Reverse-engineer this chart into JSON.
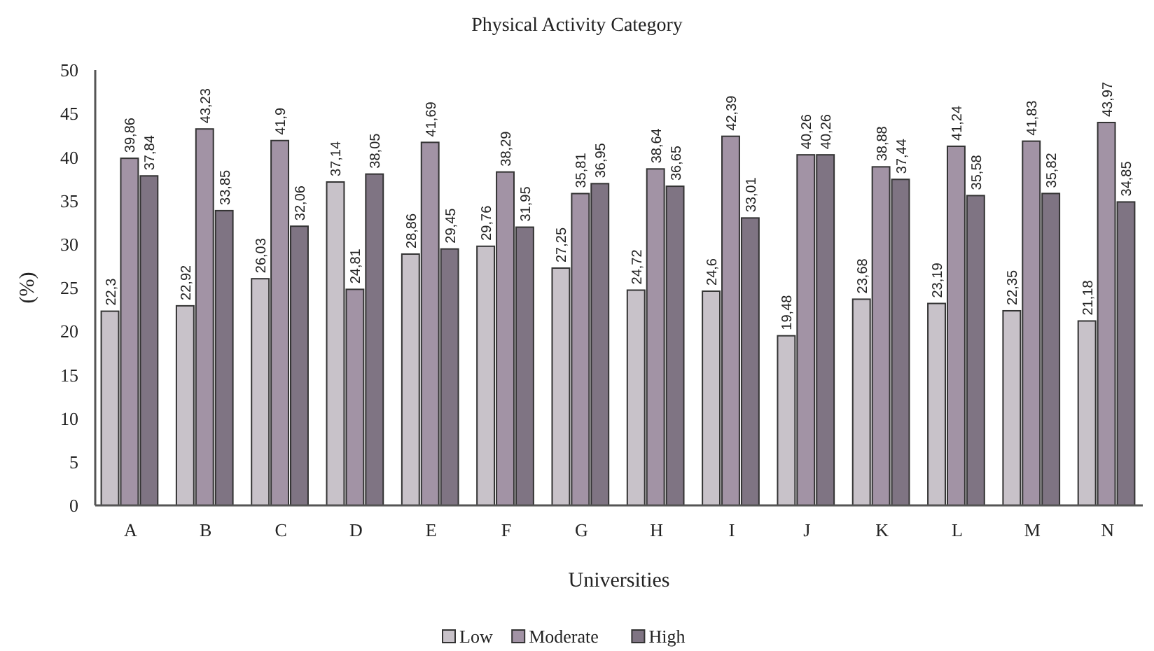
{
  "chart_data": {
    "type": "bar",
    "title": "Physical Activity Category",
    "xlabel": "Universities",
    "ylabel": "(%)",
    "categories": [
      "A",
      "B",
      "C",
      "D",
      "E",
      "F",
      "G",
      "H",
      "I",
      "J",
      "K",
      "L",
      "M",
      "N"
    ],
    "series": [
      {
        "name": "Low",
        "color": "#c8c2c9",
        "values": [
          22.3,
          22.92,
          26.03,
          37.14,
          28.86,
          29.76,
          27.25,
          24.72,
          24.6,
          19.48,
          23.68,
          23.19,
          22.35,
          21.18
        ],
        "value_labels": [
          "22,3",
          "22,92",
          "26,03",
          "37,14",
          "28,86",
          "29,76",
          "27,25",
          "24,72",
          "24,6",
          "19,48",
          "23,68",
          "23,19",
          "22,35",
          "21,18"
        ]
      },
      {
        "name": "Moderate",
        "color": "#a293a5",
        "values": [
          39.86,
          43.23,
          41.9,
          24.81,
          41.69,
          38.29,
          35.81,
          38.64,
          42.39,
          40.26,
          38.88,
          41.24,
          41.83,
          43.97
        ],
        "value_labels": [
          "39,86",
          "43,23",
          "41,9",
          "24,81",
          "41,69",
          "38,29",
          "35,81",
          "38,64",
          "42,39",
          "40,26",
          "38,88",
          "41,24",
          "41,83",
          "43,97"
        ]
      },
      {
        "name": "High",
        "color": "#7f7483",
        "values": [
          37.84,
          33.85,
          32.06,
          38.05,
          29.45,
          31.95,
          36.95,
          36.65,
          33.01,
          40.26,
          37.44,
          35.58,
          35.82,
          34.85
        ],
        "value_labels": [
          "37,84",
          "33,85",
          "32,06",
          "38,05",
          "29,45",
          "31,95",
          "36,95",
          "36,65",
          "33,01",
          "40,26",
          "37,44",
          "35,58",
          "35,82",
          "34,85"
        ]
      }
    ],
    "ylim": [
      0,
      50
    ],
    "yticks": [
      0,
      5,
      10,
      15,
      20,
      25,
      30,
      35,
      40,
      45,
      50
    ],
    "grid": false,
    "legend": "bottom"
  }
}
